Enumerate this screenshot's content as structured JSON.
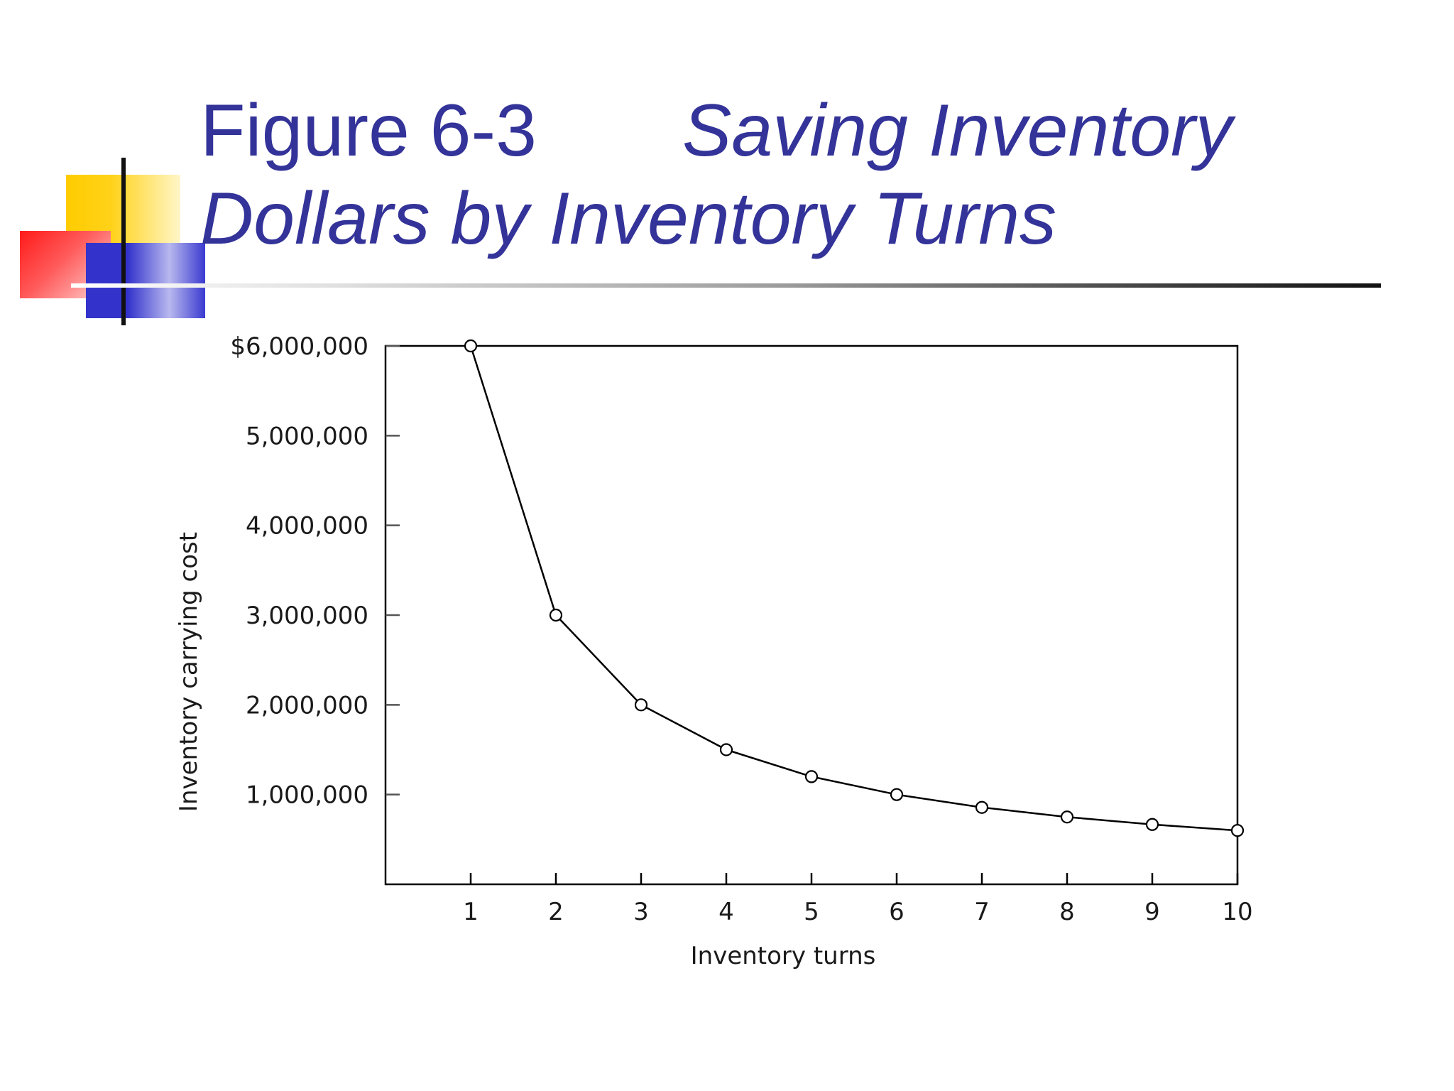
{
  "slide": {
    "title_part1": "Figure 6-3",
    "title_part2": "Saving Inventory",
    "title_line2": "Dollars by Inventory Turns"
  },
  "chart_data": {
    "type": "line",
    "title": "",
    "xlabel": "Inventory turns",
    "ylabel": "Inventory carrying cost",
    "x": [
      1,
      2,
      3,
      4,
      5,
      6,
      7,
      8,
      9,
      10
    ],
    "series": [
      {
        "name": "",
        "values": [
          6000000,
          3000000,
          2000000,
          1500000,
          1200000,
          1000000,
          857143,
          750000,
          666667,
          600000
        ]
      }
    ],
    "xlim": [
      0,
      10
    ],
    "ylim": [
      0,
      6000000
    ],
    "x_ticks": [
      "1",
      "2",
      "3",
      "4",
      "5",
      "6",
      "7",
      "8",
      "9",
      "10"
    ],
    "y_ticks": [
      {
        "value": 6000000,
        "label": "$6,000,000"
      },
      {
        "value": 5000000,
        "label": "5,000,000"
      },
      {
        "value": 4000000,
        "label": "4,000,000"
      },
      {
        "value": 3000000,
        "label": "3,000,000"
      },
      {
        "value": 2000000,
        "label": "2,000,000"
      },
      {
        "value": 1000000,
        "label": "1,000,000"
      }
    ],
    "marker": "open-circle",
    "grid": false,
    "line_color": "#000000"
  }
}
